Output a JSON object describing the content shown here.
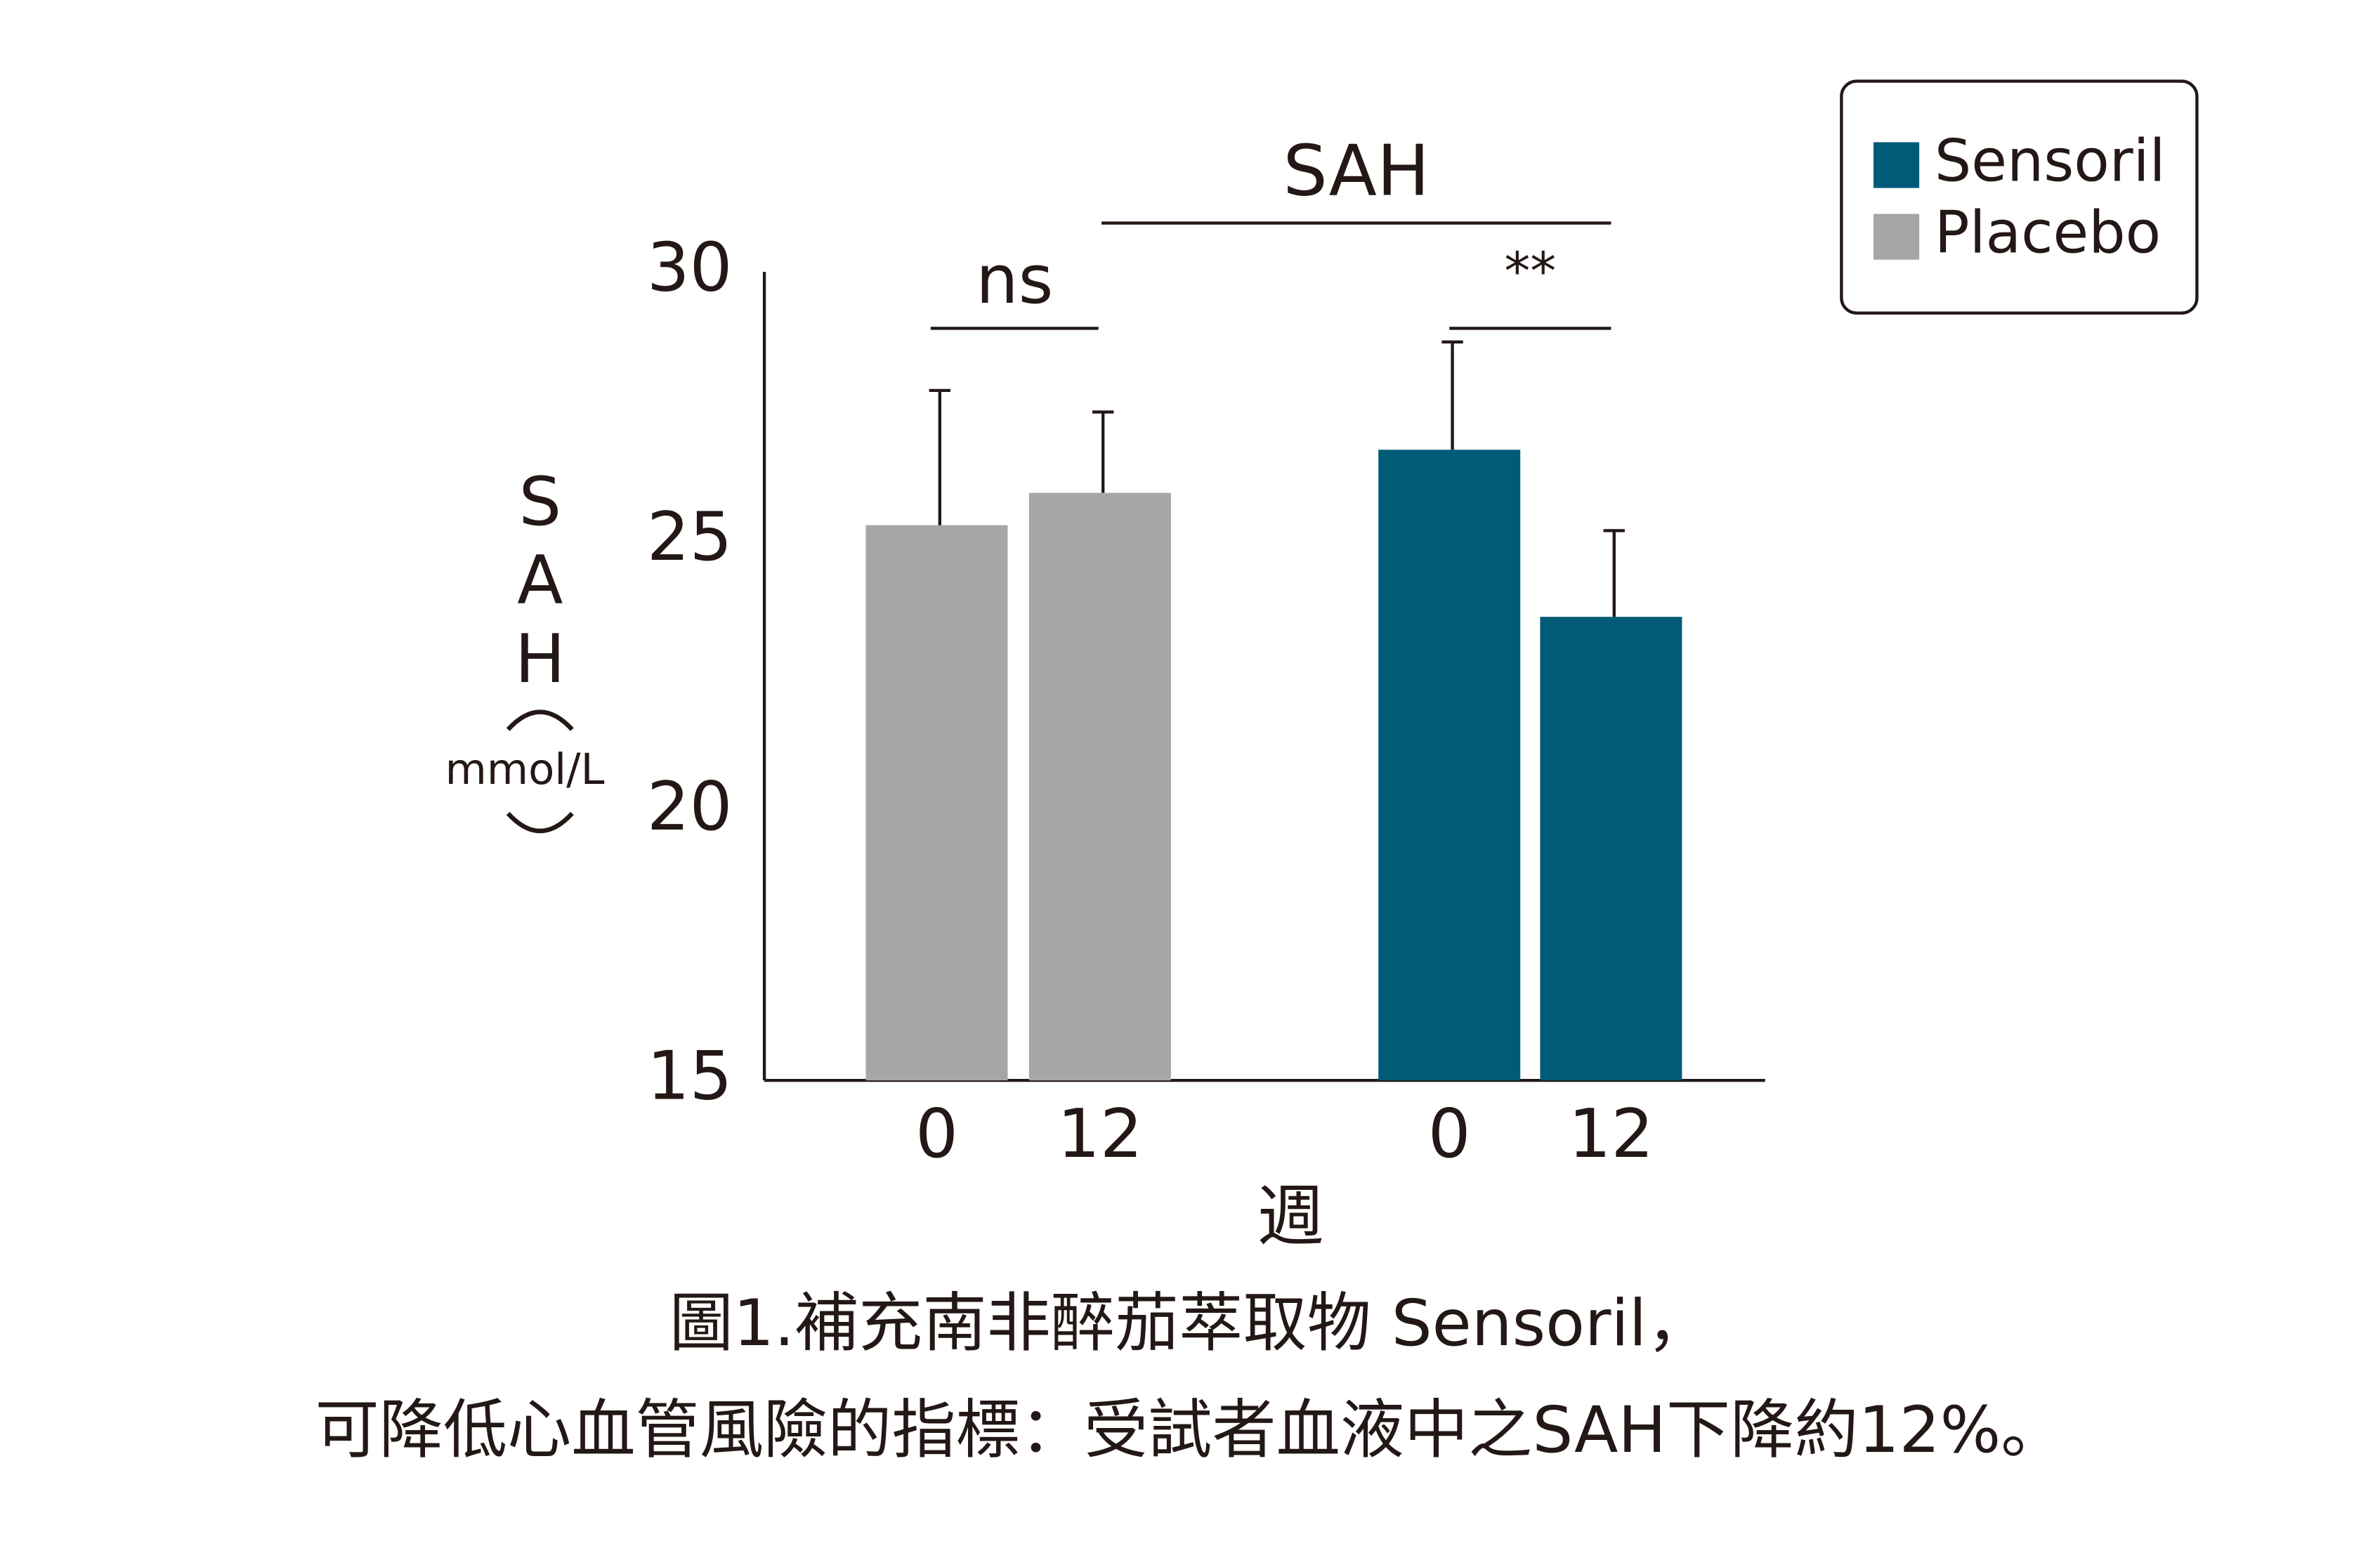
{
  "chart_data": {
    "type": "bar",
    "categories": [
      "0",
      "12",
      "0",
      "12"
    ],
    "x_label": "週",
    "y_label": "SAH",
    "y_unit": "mmol/L",
    "series": [
      {
        "name": "Placebo",
        "color": "#a6a6a6",
        "values": [
          25.3,
          25.9,
          null,
          null
        ],
        "errors": [
          2.5,
          1.5,
          null,
          null
        ]
      },
      {
        "name": "Sensoril",
        "color": "#005a78",
        "values": [
          null,
          null,
          26.7,
          23.6
        ],
        "errors": [
          null,
          null,
          2.0,
          1.6
        ]
      }
    ],
    "ylim": [
      15,
      30
    ],
    "yticks": [
      15,
      20,
      25,
      30
    ],
    "grid": false,
    "legend": "top-right",
    "annotations": [
      "ns",
      "SAH",
      "**"
    ],
    "caption": [
      "圖1.補充南非醉茄萃取物 Sensoril，",
      "可降低心血管風險的指標：受試者血液中之SAH下降約12%。"
    ]
  }
}
